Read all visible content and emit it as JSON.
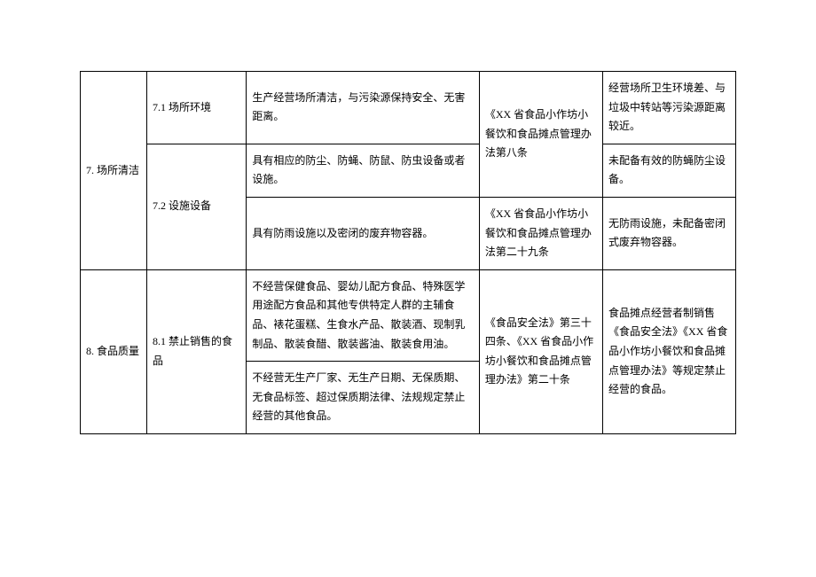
{
  "table": {
    "rows": [
      {
        "c1": "7. 场所清洁",
        "c1_rowspan": 3,
        "c2": "7.1 场所环境",
        "c2_rowspan": 1,
        "c3": "生产经营场所清洁，与污染源保持安全、无害距离。",
        "c4": "《XX 省食品小作坊小餐饮和食品摊点管理办法第八条",
        "c4_rowspan": 2,
        "c5": "经营场所卫生环境差、与垃圾中转站等污染源距离较近。"
      },
      {
        "c2": "7.2 设施设备",
        "c2_rowspan": 2,
        "c3": "具有相应的防尘、防蝇、防鼠、防虫设备或者设施。",
        "c5": "未配备有效的防蝇防尘设备。"
      },
      {
        "c3": "具有防雨设施以及密闭的废弃物容器。",
        "c4": "《XX 省食品小作坊小餐饮和食品摊点管理办法第二十九条",
        "c5": "无防雨设施，未配备密闭式废弃物容器。"
      },
      {
        "c1": "8. 食品质量",
        "c1_rowspan": 2,
        "c2": "8.1 禁止销售的食品",
        "c2_rowspan": 2,
        "c3": "不经营保健食品、婴幼儿配方食品、特殊医学用途配方食品和其他专供特定人群的主辅食品、裱花蛋糕、生食水产品、散装酒、现制乳制品、散装食醋、散装酱油、散装食用油。",
        "c4": "《食品安全法》第三十四条、《XX 省食品小作坊小餐饮和食品摊点管理办法》第二十条",
        "c4_rowspan": 2,
        "c5": "食品摊点经营者制销售《食品安全法》《XX 省食品小作坊小餐饮和食品摊点管理办法》等规定禁止经营的食品。",
        "c5_rowspan": 2
      },
      {
        "c3": "不经营无生产厂家、无生产日期、无保质期、无食品标签、超过保质期法律、法规规定禁止经营的其他食品。"
      }
    ]
  }
}
